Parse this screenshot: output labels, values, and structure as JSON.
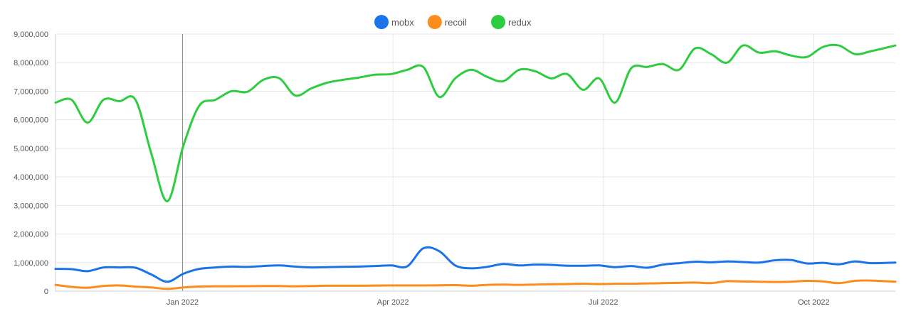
{
  "chart_data": {
    "type": "line",
    "legend_position": "top-center",
    "grid": true,
    "ylim": [
      0,
      9000000
    ],
    "yticks": [
      "0",
      "1,000,000",
      "2,000,000",
      "3,000,000",
      "4,000,000",
      "5,000,000",
      "6,000,000",
      "7,000,000",
      "8,000,000",
      "9,000,000"
    ],
    "xticks": [
      {
        "label": "Jan 2022",
        "x": 2022.0
      },
      {
        "label": "Apr 2022",
        "x": 2022.25
      },
      {
        "label": "Jul 2022",
        "x": 2022.5
      },
      {
        "label": "Oct 2022",
        "x": 2022.75
      }
    ],
    "xlim": [
      2021.849,
      2022.847
    ],
    "crosshair_x": 2022.0,
    "x": [
      2021.849,
      2021.868,
      2021.887,
      2021.906,
      2021.925,
      2021.944,
      2021.963,
      2021.982,
      2022.001,
      2022.02,
      2022.039,
      2022.058,
      2022.077,
      2022.096,
      2022.115,
      2022.134,
      2022.153,
      2022.172,
      2022.191,
      2022.21,
      2022.229,
      2022.248,
      2022.267,
      2022.286,
      2022.305,
      2022.324,
      2022.343,
      2022.362,
      2022.381,
      2022.4,
      2022.419,
      2022.438,
      2022.457,
      2022.476,
      2022.495,
      2022.514,
      2022.533,
      2022.552,
      2022.571,
      2022.59,
      2022.609,
      2022.628,
      2022.647,
      2022.666,
      2022.685,
      2022.704,
      2022.723,
      2022.742,
      2022.761,
      2022.78,
      2022.799,
      2022.818,
      2022.847
    ],
    "series": [
      {
        "name": "mobx",
        "color": "#1a73e8",
        "values": [
          780000,
          770000,
          700000,
          830000,
          830000,
          820000,
          580000,
          330000,
          610000,
          780000,
          830000,
          860000,
          850000,
          880000,
          900000,
          860000,
          830000,
          840000,
          850000,
          860000,
          880000,
          900000,
          870000,
          1500000,
          1400000,
          900000,
          800000,
          850000,
          950000,
          900000,
          930000,
          920000,
          890000,
          890000,
          900000,
          840000,
          880000,
          820000,
          930000,
          980000,
          1030000,
          1010000,
          1040000,
          1020000,
          1000000,
          1080000,
          1090000,
          970000,
          990000,
          940000,
          1040000,
          980000,
          1000000
        ]
      },
      {
        "name": "recoil",
        "color": "#fd8c1b",
        "values": [
          220000,
          150000,
          120000,
          180000,
          200000,
          160000,
          130000,
          80000,
          130000,
          160000,
          170000,
          170000,
          175000,
          180000,
          180000,
          170000,
          180000,
          190000,
          190000,
          190000,
          195000,
          200000,
          200000,
          200000,
          205000,
          210000,
          190000,
          220000,
          230000,
          220000,
          230000,
          240000,
          250000,
          260000,
          250000,
          260000,
          260000,
          270000,
          280000,
          290000,
          300000,
          280000,
          350000,
          340000,
          330000,
          320000,
          330000,
          360000,
          340000,
          280000,
          360000,
          370000,
          330000
        ]
      },
      {
        "name": "redux",
        "color": "#2ecc40",
        "values": [
          6600000,
          6700000,
          5900000,
          6700000,
          6650000,
          6700000,
          4800000,
          3150000,
          5100000,
          6500000,
          6700000,
          7000000,
          6980000,
          7400000,
          7450000,
          6850000,
          7100000,
          7300000,
          7400000,
          7480000,
          7580000,
          7600000,
          7750000,
          7850000,
          6800000,
          7450000,
          7750000,
          7500000,
          7350000,
          7750000,
          7700000,
          7450000,
          7600000,
          7050000,
          7450000,
          6600000,
          7800000,
          7850000,
          7950000,
          7750000,
          8500000,
          8300000,
          8000000,
          8600000,
          8350000,
          8400000,
          8250000,
          8200000,
          8550000,
          8600000,
          8300000,
          8400000,
          8600000
        ]
      }
    ]
  }
}
